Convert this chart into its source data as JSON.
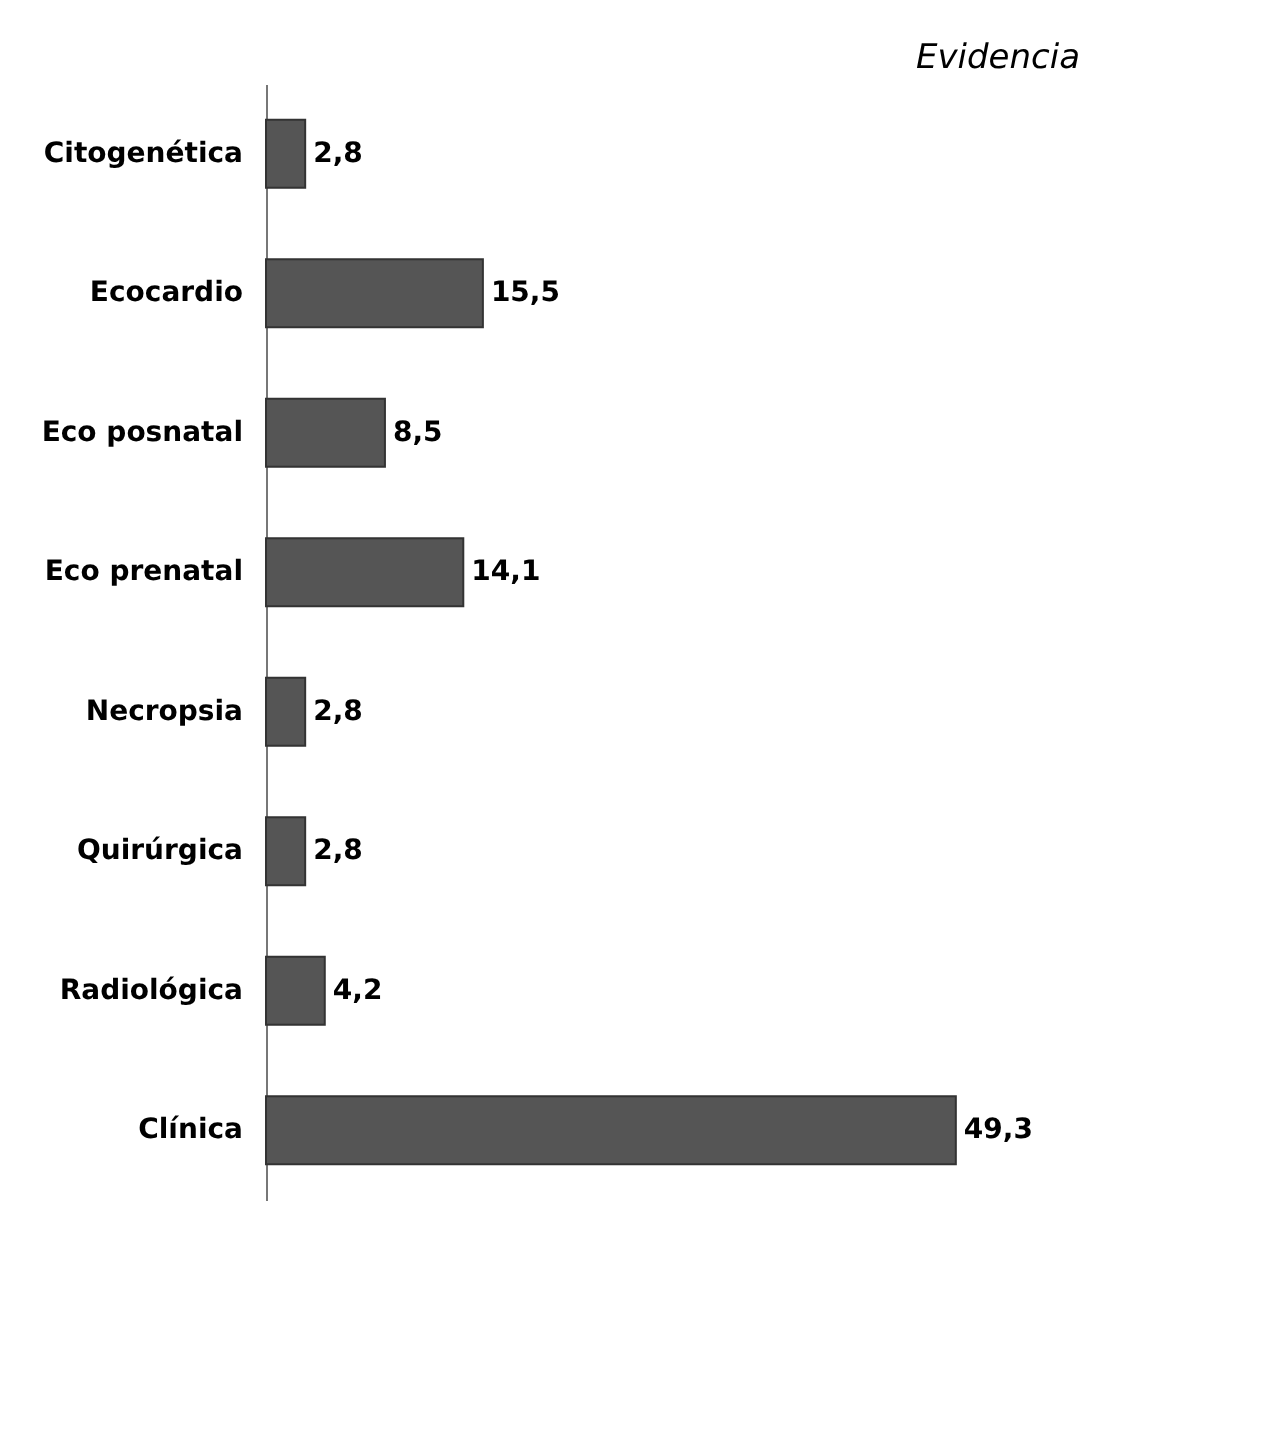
{
  "chart_data": {
    "type": "bar",
    "orientation": "horizontal",
    "title": "Evidencia",
    "categories": [
      "Citogenética",
      "Ecocardio",
      "Eco posnatal",
      "Eco prenatal",
      "Necropsia",
      "Quirúrgica",
      "Radiológica",
      "Clínica"
    ],
    "values": [
      2.8,
      15.5,
      8.5,
      14.1,
      2.8,
      2.8,
      4.2,
      49.3
    ],
    "value_labels": [
      "2,8",
      "15,5",
      "8,5",
      "14,1",
      "2,8",
      "2,8",
      "4,2",
      "49,3"
    ],
    "color": "#555555"
  }
}
